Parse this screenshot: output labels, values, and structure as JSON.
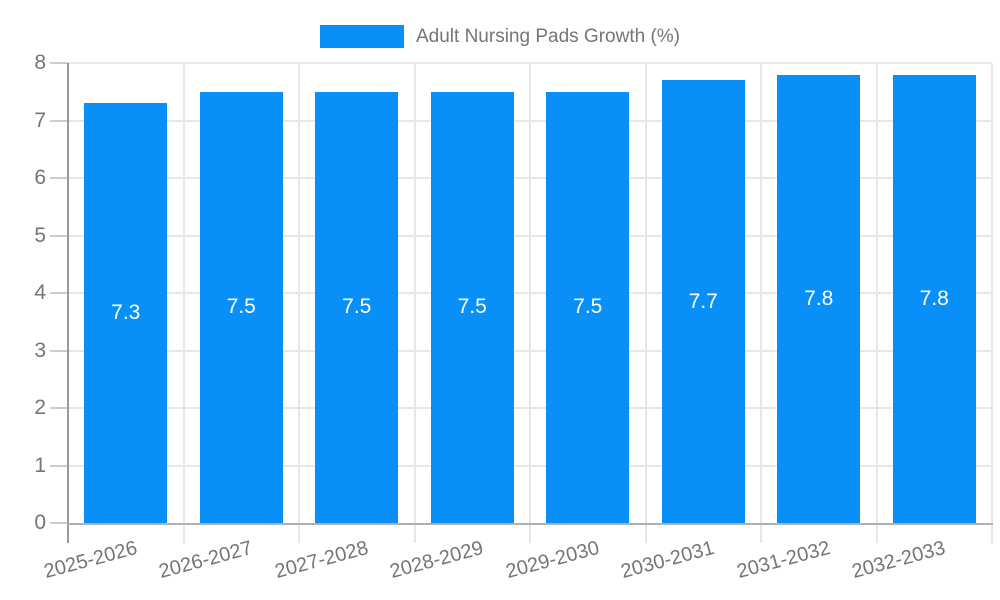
{
  "chart_data": {
    "type": "bar",
    "title": "",
    "legend_label": "Adult Nursing Pads Growth (%)",
    "legend_position": "top",
    "categories": [
      "2025-2026",
      "2026-2027",
      "2027-2028",
      "2028-2029",
      "2029-2030",
      "2030-2031",
      "2031-2032",
      "2032-2033"
    ],
    "values": [
      7.3,
      7.5,
      7.5,
      7.5,
      7.5,
      7.7,
      7.8,
      7.8
    ],
    "value_labels": [
      "7.3",
      "7.5",
      "7.5",
      "7.5",
      "7.5",
      "7.7",
      "7.8",
      "7.8"
    ],
    "xlabel": "",
    "ylabel": "",
    "ylim": [
      0,
      8
    ],
    "yticks": [
      "0",
      "1",
      "2",
      "3",
      "4",
      "5",
      "6",
      "7",
      "8"
    ],
    "grid": true,
    "legend_text": "Adult Nursing Pads Growth (%)",
    "colors": {
      "bar": "#0890F8",
      "bar_label": "#FFFFFF",
      "axis_text": "#757575",
      "gridline": "#E7E7E7",
      "tick": "#CCCCCC",
      "x_axis_line": "#B0B0B0",
      "y_axis_line": "#999999",
      "background": "#FFFFFF"
    }
  }
}
